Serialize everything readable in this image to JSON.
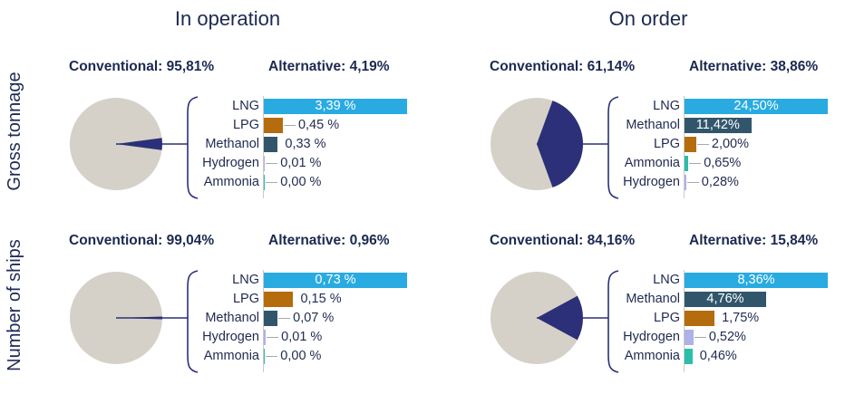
{
  "colors": {
    "navy": "#2B3078",
    "text_navy": "#1C2951",
    "pie_gray": "#D5D1C9",
    "axis_gray": "#CBC9C4",
    "leader_gray": "#A9A9A9",
    "fuels": {
      "LNG": "#29ABE2",
      "LPG": "#B56C0E",
      "Methanol": "#31566B",
      "Hydrogen": "#AEB2E8",
      "Ammonia": "#2ABFA9"
    }
  },
  "column_titles": [
    "In operation",
    "On order"
  ],
  "row_labels": [
    "Gross tonnage",
    "Number of ships"
  ],
  "chart_data": [
    {
      "type": "pie+bar",
      "row": "Gross tonnage",
      "column": "In operation",
      "conventional": {
        "label": "Conventional: 95,81%",
        "value": 95.81
      },
      "alternative": {
        "label": "Alternative: 4,19%",
        "value": 4.19
      },
      "fuels": [
        {
          "name": "LNG",
          "value": 3.39,
          "display": "3,39 %",
          "value_inside_bar": true,
          "leader_line": false
        },
        {
          "name": "LPG",
          "value": 0.45,
          "display": "0,45 %",
          "value_inside_bar": false,
          "leader_line": true
        },
        {
          "name": "Methanol",
          "value": 0.33,
          "display": "0,33 %",
          "value_inside_bar": false,
          "leader_line": false
        },
        {
          "name": "Hydrogen",
          "value": 0.01,
          "display": "0,01 %",
          "value_inside_bar": false,
          "leader_line": true
        },
        {
          "name": "Ammonia",
          "value": 0.0,
          "display": "0,00 %",
          "value_inside_bar": false,
          "leader_line": true
        }
      ]
    },
    {
      "type": "pie+bar",
      "row": "Gross tonnage",
      "column": "On order",
      "conventional": {
        "label": "Conventional: 61,14%",
        "value": 61.14
      },
      "alternative": {
        "label": "Alternative: 38,86%",
        "value": 38.86
      },
      "fuels": [
        {
          "name": "LNG",
          "value": 24.5,
          "display": "24,50%",
          "value_inside_bar": true,
          "leader_line": false
        },
        {
          "name": "Methanol",
          "value": 11.42,
          "display": "11,42%",
          "value_inside_bar": true,
          "leader_line": false
        },
        {
          "name": "LPG",
          "value": 2.0,
          "display": "2,00%",
          "value_inside_bar": false,
          "leader_line": true
        },
        {
          "name": "Ammonia",
          "value": 0.65,
          "display": "0,65%",
          "value_inside_bar": false,
          "leader_line": true
        },
        {
          "name": "Hydrogen",
          "value": 0.28,
          "display": "0,28%",
          "value_inside_bar": false,
          "leader_line": true
        }
      ]
    },
    {
      "type": "pie+bar",
      "row": "Number of ships",
      "column": "In operation",
      "conventional": {
        "label": "Conventional: 99,04%",
        "value": 99.04
      },
      "alternative": {
        "label": "Alternative: 0,96%",
        "value": 0.96
      },
      "fuels": [
        {
          "name": "LNG",
          "value": 0.73,
          "display": "0,73 %",
          "value_inside_bar": true,
          "leader_line": false
        },
        {
          "name": "LPG",
          "value": 0.15,
          "display": "0,15 %",
          "value_inside_bar": false,
          "leader_line": false
        },
        {
          "name": "Methanol",
          "value": 0.07,
          "display": "0,07 %",
          "value_inside_bar": false,
          "leader_line": true
        },
        {
          "name": "Hydrogen",
          "value": 0.01,
          "display": "0,01 %",
          "value_inside_bar": false,
          "leader_line": true
        },
        {
          "name": "Ammonia",
          "value": 0.0,
          "display": "0,00 %",
          "value_inside_bar": false,
          "leader_line": true
        }
      ]
    },
    {
      "type": "pie+bar",
      "row": "Number of ships",
      "column": "On order",
      "conventional": {
        "label": "Conventional: 84,16%",
        "value": 84.16
      },
      "alternative": {
        "label": "Alternative: 15,84%",
        "value": 15.84
      },
      "fuels": [
        {
          "name": "LNG",
          "value": 8.36,
          "display": "8,36%",
          "value_inside_bar": true,
          "leader_line": false
        },
        {
          "name": "Methanol",
          "value": 4.76,
          "display": "4,76%",
          "value_inside_bar": true,
          "leader_line": false
        },
        {
          "name": "LPG",
          "value": 1.75,
          "display": "1,75%",
          "value_inside_bar": false,
          "leader_line": false
        },
        {
          "name": "Hydrogen",
          "value": 0.52,
          "display": "0,52%",
          "value_inside_bar": false,
          "leader_line": true
        },
        {
          "name": "Ammonia",
          "value": 0.46,
          "display": "0,46%",
          "value_inside_bar": false,
          "leader_line": false
        }
      ]
    }
  ]
}
